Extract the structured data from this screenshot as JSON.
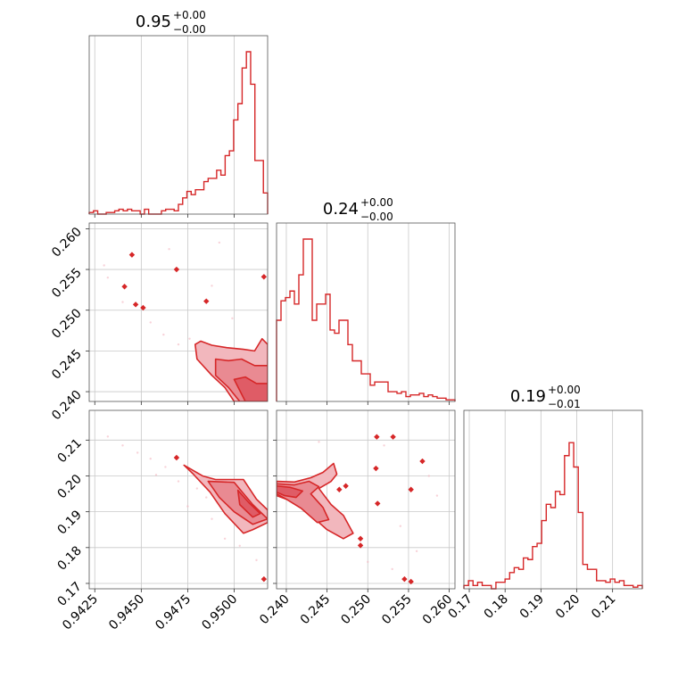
{
  "chart_data": {
    "type": "corner",
    "color": "#d62728",
    "parameters": [
      {
        "title": "0.95",
        "sup": "+0.00",
        "sub": "−0.00",
        "range": [
          0.9422,
          0.9518
        ],
        "ticks": [
          0.9425,
          0.945,
          0.9475,
          0.95
        ],
        "tick_labels": [
          "0.9425",
          "0.9450",
          "0.9475",
          "0.9500"
        ],
        "hist": [
          0.01,
          0.02,
          0.0,
          0.0,
          0.01,
          0.01,
          0.02,
          0.03,
          0.02,
          0.03,
          0.02,
          0.02,
          0.0,
          0.03,
          0.0,
          0.0,
          0.0,
          0.02,
          0.03,
          0.03,
          0.02,
          0.06,
          0.1,
          0.14,
          0.12,
          0.15,
          0.15,
          0.2,
          0.22,
          0.22,
          0.27,
          0.24,
          0.36,
          0.39,
          0.58,
          0.68,
          0.9,
          1.0,
          0.8,
          0.33,
          0.33,
          0.13
        ]
      },
      {
        "title": "0.24",
        "sup": "+0.00",
        "sub": "−0.00",
        "range": [
          0.2388,
          0.2607
        ],
        "ticks": [
          0.24,
          0.245,
          0.25,
          0.255,
          0.26
        ],
        "tick_labels": [
          "0.240",
          "0.245",
          "0.250",
          "0.255",
          "0.260"
        ],
        "tick_labels_y": [
          "0.240",
          "0.245",
          "0.250",
          "0.255",
          "0.260"
        ],
        "hist": [
          0.5,
          0.62,
          0.64,
          0.68,
          0.6,
          0.78,
          1.0,
          1.0,
          0.5,
          0.6,
          0.6,
          0.66,
          0.44,
          0.42,
          0.5,
          0.5,
          0.35,
          0.25,
          0.25,
          0.17,
          0.17,
          0.1,
          0.12,
          0.12,
          0.12,
          0.06,
          0.06,
          0.05,
          0.06,
          0.03,
          0.04,
          0.04,
          0.05,
          0.03,
          0.04,
          0.03,
          0.02,
          0.02,
          0.01,
          0.01
        ]
      },
      {
        "title": "0.19",
        "sup": "+0.00",
        "sub": "−0.01",
        "range": [
          0.1685,
          0.2183
        ],
        "ticks": [
          0.17,
          0.18,
          0.19,
          0.2,
          0.21
        ],
        "tick_labels": [
          "0.17",
          "0.18",
          "0.19",
          "0.20",
          "0.21"
        ],
        "hist": [
          0.02,
          0.05,
          0.02,
          0.04,
          0.02,
          0.02,
          0.0,
          0.04,
          0.04,
          0.06,
          0.1,
          0.13,
          0.12,
          0.19,
          0.18,
          0.26,
          0.28,
          0.42,
          0.52,
          0.5,
          0.6,
          0.58,
          0.82,
          0.9,
          0.75,
          0.47,
          0.15,
          0.12,
          0.12,
          0.05,
          0.05,
          0.04,
          0.06,
          0.04,
          0.05,
          0.02,
          0.02,
          0.01,
          0.02
        ]
      }
    ],
    "pairs": [
      {
        "x_param": 0,
        "y_param": 1,
        "levels": [
          [
            [
              0.9479,
              0.2458
            ],
            [
              0.9482,
              0.2462
            ],
            [
              0.9488,
              0.2457
            ],
            [
              0.9496,
              0.2454
            ],
            [
              0.9505,
              0.2452
            ],
            [
              0.9511,
              0.245
            ],
            [
              0.9515,
              0.2465
            ],
            [
              0.9518,
              0.2458
            ],
            [
              0.9518,
              0.2388
            ],
            [
              0.95,
              0.2388
            ],
            [
              0.9495,
              0.2405
            ],
            [
              0.9488,
              0.242
            ],
            [
              0.948,
              0.244
            ]
          ],
          [
            [
              0.949,
              0.244
            ],
            [
              0.9497,
              0.2438
            ],
            [
              0.9504,
              0.244
            ],
            [
              0.9511,
              0.2432
            ],
            [
              0.9518,
              0.2432
            ],
            [
              0.9518,
              0.2388
            ],
            [
              0.9503,
              0.2388
            ],
            [
              0.9497,
              0.2405
            ],
            [
              0.949,
              0.242
            ]
          ],
          [
            [
              0.95,
              0.2415
            ],
            [
              0.9506,
              0.2418
            ],
            [
              0.9512,
              0.241
            ],
            [
              0.9518,
              0.241
            ],
            [
              0.9518,
              0.2388
            ],
            [
              0.9506,
              0.2388
            ]
          ]
        ],
        "points": [
          [
            0.9445,
            0.2568
          ],
          [
            0.9469,
            0.255
          ],
          [
            0.9441,
            0.2529
          ],
          [
            0.9447,
            0.2507
          ],
          [
            0.9451,
            0.2503
          ],
          [
            0.9485,
            0.2511
          ],
          [
            0.9516,
            0.2541
          ],
          [
            0.943,
            0.2555
          ],
          [
            0.944,
            0.251
          ],
          [
            0.9455,
            0.2485
          ],
          [
            0.9462,
            0.247
          ],
          [
            0.9476,
            0.2465
          ],
          [
            0.9488,
            0.253
          ],
          [
            0.9499,
            0.249
          ],
          [
            0.9432,
            0.254
          ],
          [
            0.9465,
            0.2575
          ],
          [
            0.9492,
            0.2583
          ],
          [
            0.947,
            0.2458
          ]
        ]
      },
      {
        "x_param": 0,
        "y_param": 2,
        "levels": [
          [
            [
              0.9473,
              0.203
            ],
            [
              0.9483,
              0.2
            ],
            [
              0.949,
              0.199
            ],
            [
              0.9505,
              0.199
            ],
            [
              0.9512,
              0.1935
            ],
            [
              0.9518,
              0.1905
            ],
            [
              0.9518,
              0.187
            ],
            [
              0.951,
              0.185
            ],
            [
              0.9505,
              0.184
            ],
            [
              0.9495,
              0.1895
            ],
            [
              0.9487,
              0.1955
            ],
            [
              0.9478,
              0.2005
            ]
          ],
          [
            [
              0.9486,
              0.1985
            ],
            [
              0.95,
              0.1982
            ],
            [
              0.951,
              0.192
            ],
            [
              0.9518,
              0.188
            ],
            [
              0.951,
              0.1865
            ],
            [
              0.95,
              0.19
            ],
            [
              0.9492,
              0.194
            ]
          ],
          [
            [
              0.9502,
              0.196
            ],
            [
              0.9508,
              0.1925
            ],
            [
              0.9514,
              0.1895
            ],
            [
              0.951,
              0.1885
            ],
            [
              0.9503,
              0.192
            ]
          ]
        ],
        "points": [
          [
            0.9469,
            0.2051
          ],
          [
            0.9516,
            0.1712
          ],
          [
            0.9432,
            0.211
          ],
          [
            0.944,
            0.2085
          ],
          [
            0.9448,
            0.2065
          ],
          [
            0.9455,
            0.2048
          ],
          [
            0.9463,
            0.2025
          ],
          [
            0.9458,
            0.2003
          ],
          [
            0.947,
            0.1985
          ],
          [
            0.948,
            0.1965
          ],
          [
            0.9485,
            0.194
          ],
          [
            0.9495,
            0.1825
          ],
          [
            0.9503,
            0.1805
          ],
          [
            0.9512,
            0.1765
          ],
          [
            0.9488,
            0.188
          ],
          [
            0.9475,
            0.1915
          ]
        ]
      },
      {
        "x_param": 1,
        "y_param": 2,
        "levels": [
          [
            [
              0.2388,
              0.1985
            ],
            [
              0.241,
              0.1983
            ],
            [
              0.243,
              0.1995
            ],
            [
              0.2445,
              0.201
            ],
            [
              0.2458,
              0.2035
            ],
            [
              0.2462,
              0.2005
            ],
            [
              0.2455,
              0.1985
            ],
            [
              0.244,
              0.1965
            ],
            [
              0.2455,
              0.192
            ],
            [
              0.247,
              0.189
            ],
            [
              0.2482,
              0.184
            ],
            [
              0.247,
              0.1825
            ],
            [
              0.245,
              0.185
            ],
            [
              0.243,
              0.189
            ],
            [
              0.2412,
              0.1925
            ],
            [
              0.2388,
              0.1945
            ]
          ],
          [
            [
              0.2388,
              0.1978
            ],
            [
              0.241,
              0.1975
            ],
            [
              0.2428,
              0.1985
            ],
            [
              0.244,
              0.197
            ],
            [
              0.243,
              0.195
            ],
            [
              0.2445,
              0.1912
            ],
            [
              0.2452,
              0.1878
            ],
            [
              0.2438,
              0.187
            ],
            [
              0.2418,
              0.191
            ],
            [
              0.24,
              0.1935
            ],
            [
              0.2388,
              0.195
            ]
          ],
          [
            [
              0.2388,
              0.1972
            ],
            [
              0.2405,
              0.1968
            ],
            [
              0.242,
              0.1958
            ],
            [
              0.2412,
              0.194
            ],
            [
              0.2398,
              0.1945
            ],
            [
              0.2388,
              0.1955
            ]
          ]
        ],
        "points": [
          [
            0.2511,
            0.2109
          ],
          [
            0.2531,
            0.2109
          ],
          [
            0.2567,
            0.2041
          ],
          [
            0.251,
            0.2021
          ],
          [
            0.2553,
            0.1962
          ],
          [
            0.2473,
            0.1972
          ],
          [
            0.2465,
            0.1962
          ],
          [
            0.2512,
            0.1923
          ],
          [
            0.2491,
            0.1825
          ],
          [
            0.2491,
            0.1806
          ],
          [
            0.2545,
            0.1712
          ],
          [
            0.2553,
            0.1705
          ],
          [
            0.244,
            0.2095
          ],
          [
            0.252,
            0.2085
          ],
          [
            0.2575,
            0.2
          ],
          [
            0.2585,
            0.1945
          ],
          [
            0.254,
            0.186
          ],
          [
            0.256,
            0.179
          ],
          [
            0.25,
            0.176
          ],
          [
            0.253,
            0.174
          ]
        ]
      }
    ]
  }
}
